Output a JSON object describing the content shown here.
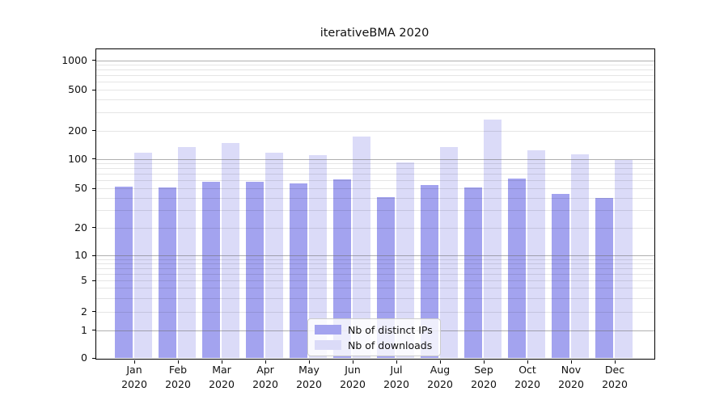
{
  "figure": {
    "title": "iterativeBMA 2020"
  },
  "chart_data": {
    "type": "bar",
    "title": "iterativeBMA 2020",
    "xlabel": "",
    "ylabel": "",
    "yscale": "symlog",
    "ylim": [
      0,
      1300
    ],
    "grid": true,
    "legend_position": "bottom-center-inside",
    "year": "2020",
    "months": [
      "Jan",
      "Feb",
      "Mar",
      "Apr",
      "May",
      "Jun",
      "Jul",
      "Aug",
      "Sep",
      "Oct",
      "Nov",
      "Dec"
    ],
    "categories": [
      "Jan 2020",
      "Feb 2020",
      "Mar 2020",
      "Apr 2020",
      "May 2020",
      "Jun 2020",
      "Jul 2020",
      "Aug 2020",
      "Sep 2020",
      "Oct 2020",
      "Nov 2020",
      "Dec 2020"
    ],
    "yticks": [
      0,
      1,
      2,
      5,
      10,
      20,
      50,
      100,
      200,
      500,
      1000
    ],
    "ytick_labels": [
      "0",
      "1",
      "2",
      "5",
      "10",
      "20",
      "50",
      "100",
      "200",
      "500",
      "1000"
    ],
    "major_grid_values": [
      1,
      10,
      100,
      1000
    ],
    "minor_grid_values": [
      2,
      3,
      4,
      5,
      6,
      7,
      8,
      9,
      20,
      30,
      40,
      50,
      60,
      70,
      80,
      90,
      200,
      300,
      400,
      500,
      600,
      700,
      800,
      900
    ],
    "series": [
      {
        "name": "Nb of distinct IPs",
        "color": "#a3a3ef",
        "values": [
          52,
          51,
          58,
          58,
          56,
          62,
          41,
          54,
          51,
          63,
          44,
          40
        ]
      },
      {
        "name": "Nb of downloads",
        "color": "#dbdbf8",
        "values": [
          116,
          133,
          148,
          115,
          110,
          172,
          92,
          134,
          255,
          124,
          112,
          97
        ]
      }
    ]
  }
}
